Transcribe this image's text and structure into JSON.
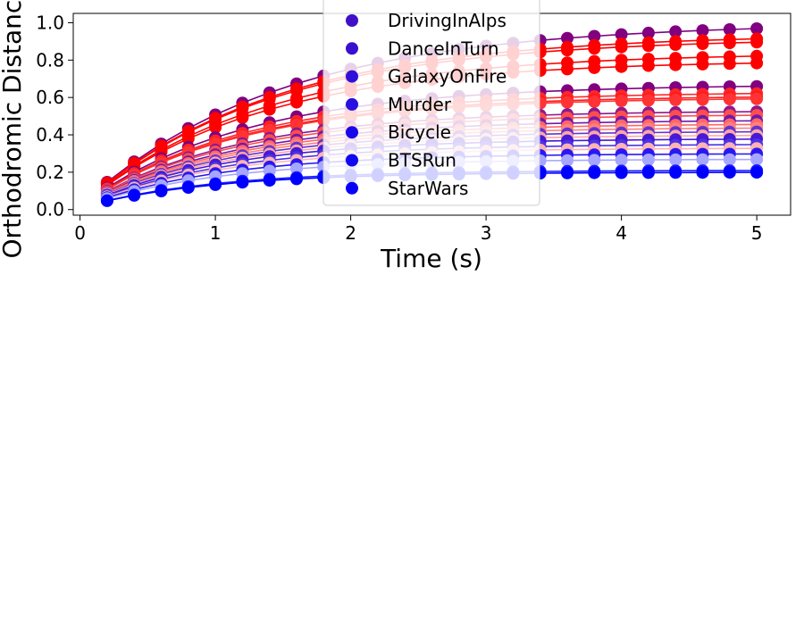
{
  "chart_data": {
    "type": "line",
    "title": "",
    "xlabel": "Time (s)",
    "ylabel": "Orthodromic Distance",
    "xlim": [
      -0.05,
      5.25
    ],
    "ylim": [
      -0.03,
      1.05
    ],
    "x_ticks": [
      0,
      1,
      2,
      3,
      4,
      5
    ],
    "x_tick_labels": [
      "0",
      "1",
      "2",
      "3",
      "4",
      "5"
    ],
    "y_ticks": [
      0.0,
      0.2,
      0.4,
      0.6,
      0.8,
      1.0
    ],
    "y_tick_labels": [
      "0.0",
      "0.2",
      "0.4",
      "0.6",
      "0.8",
      "1.0"
    ],
    "grid": false,
    "legend_position": "top-center",
    "x": [
      0.2,
      0.4,
      0.6,
      0.8,
      1.0,
      1.2,
      1.4,
      1.6,
      1.8,
      2.0,
      2.2,
      2.4,
      2.6,
      2.8,
      3.0,
      3.2,
      3.4,
      3.6,
      3.8,
      4.0,
      4.2,
      4.4,
      4.6,
      4.8,
      5.0
    ],
    "series": [
      {
        "name": "",
        "color": "#800080",
        "saturation": 1.0,
        "final": 1.0
      },
      {
        "name": "",
        "color": "#ff0000",
        "saturation": 1.0,
        "final": 0.94
      },
      {
        "name": "",
        "color": "#ff0000",
        "saturation": 1.0,
        "final": 0.92
      },
      {
        "name": "",
        "color": "#ff0000",
        "saturation": 1.0,
        "final": 0.84
      },
      {
        "name": "",
        "color": "#ff0000",
        "saturation": 1.0,
        "final": 0.8
      },
      {
        "name": "",
        "color": "#800080",
        "saturation": 1.0,
        "final": 0.67
      },
      {
        "name": "",
        "color": "#ff0000",
        "saturation": 0.85,
        "final": 0.63
      },
      {
        "name": "",
        "color": "#ff0000",
        "saturation": 0.9,
        "final": 0.61
      },
      {
        "name": "",
        "color": "#ff0000",
        "saturation": 0.8,
        "final": 0.6
      },
      {
        "name": "",
        "color": "#800080",
        "saturation": 0.9,
        "final": 0.53
      },
      {
        "name": "",
        "color": "#ff0000",
        "saturation": 0.7,
        "final": 0.51
      },
      {
        "name": "",
        "color": "#6000a0",
        "saturation": 0.9,
        "final": 0.48
      },
      {
        "name": "",
        "color": "#ff0000",
        "saturation": 0.6,
        "final": 0.46
      },
      {
        "name": "",
        "color": "#ff0000",
        "saturation": 0.5,
        "final": 0.44
      },
      {
        "name": "",
        "color": "#4000c0",
        "saturation": 0.8,
        "final": 0.42
      },
      {
        "name": "",
        "color": "#ff0000",
        "saturation": 0.35,
        "final": 0.4
      },
      {
        "name": "",
        "color": "#3000d0",
        "saturation": 0.9,
        "final": 0.38
      },
      {
        "name": "",
        "color": "#2000e0",
        "saturation": 0.8,
        "final": 0.35
      },
      {
        "name": "",
        "color": "#ff0000",
        "saturation": 0.3,
        "final": 0.33
      },
      {
        "name": "",
        "color": "#1000f0",
        "saturation": 0.9,
        "final": 0.3
      },
      {
        "name": "",
        "color": "#0000ff",
        "saturation": 0.35,
        "final": 0.27
      },
      {
        "name": "",
        "color": "#0000ff",
        "saturation": 0.9,
        "final": 0.21
      },
      {
        "name": "",
        "color": "#0000ff",
        "saturation": 1.0,
        "final": 0.2
      }
    ],
    "legend": [
      {
        "label": "DrivingInAlps",
        "color": "#4010c8"
      },
      {
        "label": "DanceInTurn",
        "color": "#3a10d0"
      },
      {
        "label": "GalaxyOnFire",
        "color": "#3010d8"
      },
      {
        "label": "Murder",
        "color": "#2810e0"
      },
      {
        "label": "Bicycle",
        "color": "#1808e8"
      },
      {
        "label": "BTSRun",
        "color": "#1008f0"
      },
      {
        "label": "StarWars",
        "color": "#0800f8"
      }
    ]
  }
}
